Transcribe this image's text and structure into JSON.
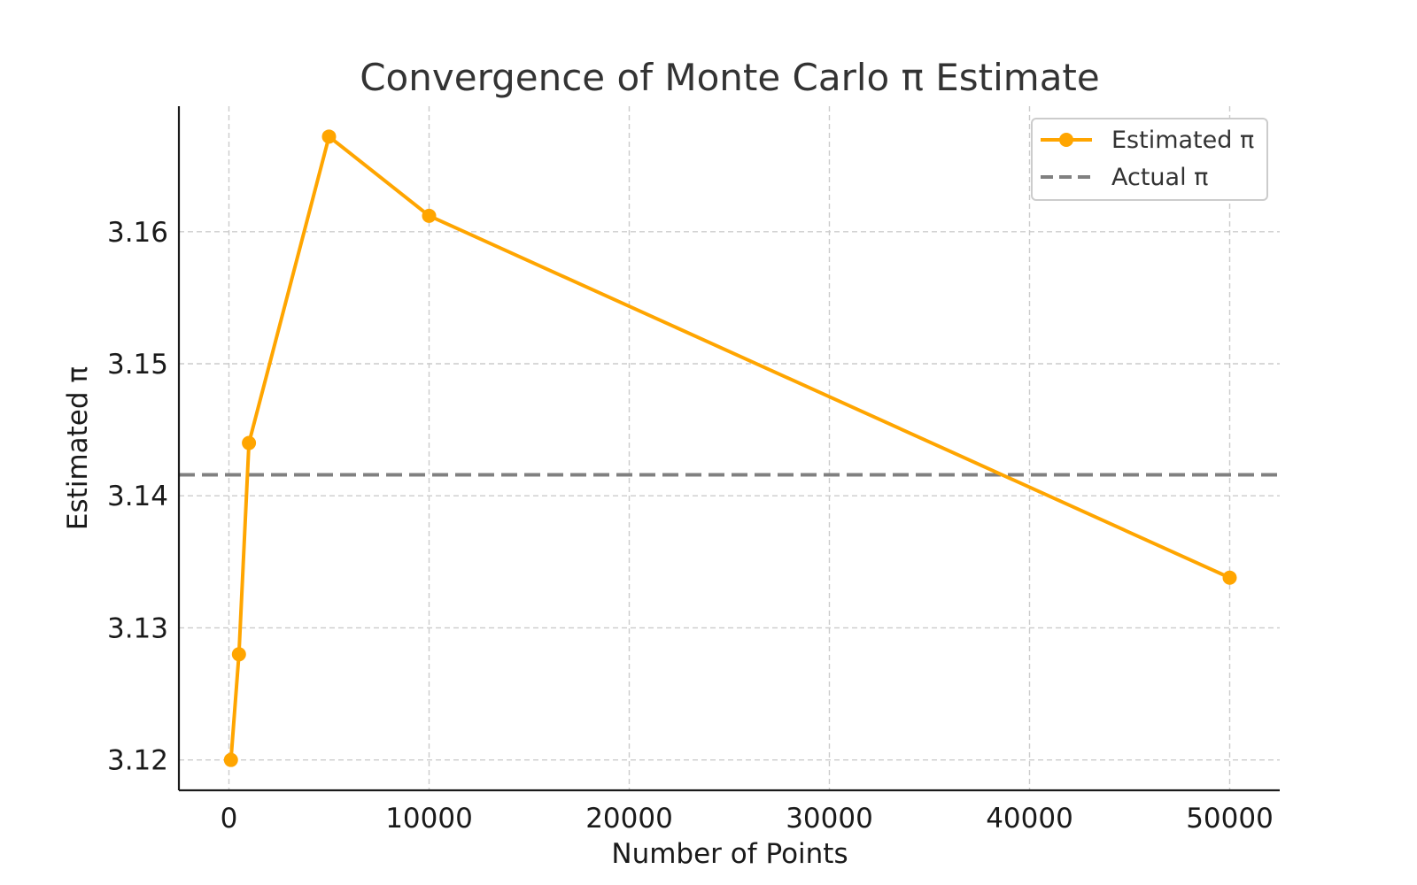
{
  "chart_data": {
    "type": "line",
    "title": "Convergence of Monte Carlo π Estimate",
    "xlabel": "Number of Points",
    "ylabel": "Estimated π",
    "xlim": [
      -2500,
      52500
    ],
    "ylim": [
      3.1177,
      3.1695
    ],
    "x_ticks": [
      0,
      10000,
      20000,
      30000,
      40000,
      50000
    ],
    "y_ticks": [
      3.12,
      3.13,
      3.14,
      3.15,
      3.16
    ],
    "y_tick_labels": [
      "3.12",
      "3.13",
      "3.14",
      "3.15",
      "3.16"
    ],
    "grid": true,
    "legend_position": "top-right",
    "series": [
      {
        "name": "Estimated π",
        "color": "#FFA500",
        "marker": "circle",
        "x": [
          100,
          500,
          1000,
          5000,
          10000,
          50000
        ],
        "y": [
          3.12,
          3.128,
          3.144,
          3.1672,
          3.1612,
          3.1338
        ]
      }
    ],
    "reference_lines": [
      {
        "name": "Actual π",
        "orientation": "horizontal",
        "value": 3.14159,
        "color": "#808080",
        "style": "dashed"
      }
    ]
  }
}
